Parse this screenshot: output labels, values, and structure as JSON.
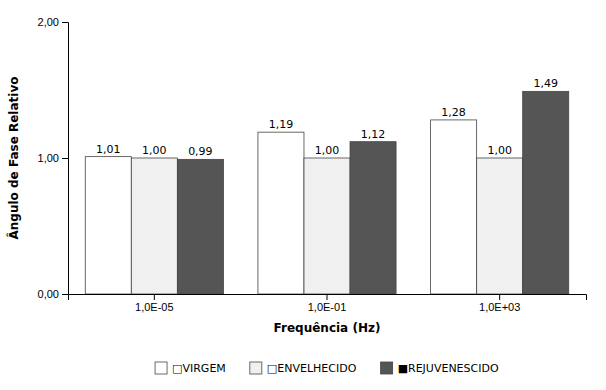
{
  "chart_data": {
    "type": "bar",
    "categories": [
      "1,0E-05",
      "1,0E-01",
      "1,0E+03"
    ],
    "series": [
      {
        "name": "□VIRGEM",
        "color": "#ffffff",
        "values": [
          1.01,
          1.19,
          1.28
        ],
        "value_labels": [
          "1,01",
          "1,19",
          "1,28"
        ]
      },
      {
        "name": "□ENVELHECIDO",
        "color": "#f0f0f0",
        "values": [
          1.0,
          1.0,
          1.0
        ],
        "value_labels": [
          "1,00",
          "1,00",
          "1,00"
        ]
      },
      {
        "name": "■REJUVENESCIDO",
        "color": "#555555",
        "values": [
          0.99,
          1.12,
          1.49
        ],
        "value_labels": [
          "0,99",
          "1,12",
          "1,49"
        ]
      }
    ],
    "xlabel": "Frequência (Hz)",
    "ylabel": "Ângulo de Fase Relativo",
    "ylim": [
      0.0,
      2.0
    ],
    "yticks": [
      {
        "value": 0.0,
        "label": "0,00"
      },
      {
        "value": 1.0,
        "label": "1,00"
      },
      {
        "value": 2.0,
        "label": "2,00"
      }
    ],
    "grid": false,
    "data_labels": true,
    "legend": "bottom"
  }
}
